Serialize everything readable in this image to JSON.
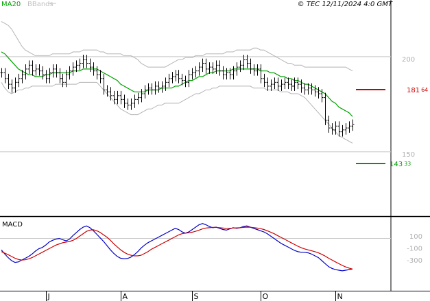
{
  "header": {
    "legend_ma": "MA20",
    "legend_bb": "BBands",
    "copyright": "© TEC 12/11/2024 4:0 GMT"
  },
  "colors": {
    "ma": "#00a000",
    "bands": "#b4b4b4",
    "bars": "#000000",
    "resistance": "#cc0000",
    "support": "#009900",
    "macd": "#0000cc",
    "signal": "#cc0000"
  },
  "macd_panel": {
    "title": "MACD"
  },
  "chart_data": [
    {
      "type": "ohlc",
      "title": "",
      "y_ticks": [
        {
          "value": 200,
          "label": "200"
        },
        {
          "value": 150,
          "label": "150"
        }
      ],
      "ylim": [
        110,
        230
      ],
      "x_axis": {
        "months": [
          {
            "label": "J",
            "index": 13
          },
          {
            "label": "A",
            "index": 35
          },
          {
            "label": "S",
            "index": 56
          },
          {
            "label": "O",
            "index": 76
          },
          {
            "label": "N",
            "index": 98
          }
        ]
      },
      "levels": [
        {
          "name": "resistance",
          "value": 181.64,
          "label_int": "181",
          "label_dec": "64"
        },
        {
          "name": "support",
          "value": 143.33,
          "label_int": "143",
          "label_dec": "33"
        }
      ],
      "reference_lines": [
        201.5,
        151.5
      ],
      "closes": [
        193,
        190,
        187,
        185,
        188,
        190,
        192,
        195,
        197,
        194,
        195,
        194,
        192,
        190,
        193,
        195,
        193,
        190,
        188,
        192,
        194,
        196,
        197,
        198,
        200,
        198,
        196,
        194,
        192,
        190,
        184,
        183,
        181,
        179,
        181,
        179,
        177,
        176,
        177,
        179,
        180,
        182,
        184,
        185,
        184,
        186,
        185,
        186,
        188,
        190,
        191,
        192,
        190,
        189,
        188,
        192,
        193,
        194,
        196,
        198,
        195,
        196,
        195,
        197,
        194,
        192,
        193,
        192,
        194,
        196,
        197,
        200,
        198,
        195,
        194,
        195,
        190,
        188,
        186,
        187,
        188,
        186,
        187,
        188,
        187,
        186,
        188,
        187,
        185,
        184,
        185,
        184,
        183,
        182,
        180,
        168,
        164,
        163,
        165,
        162,
        163,
        164,
        165,
        166
      ],
      "ma20": [
        204,
        203,
        201,
        199,
        197,
        195,
        194,
        193,
        192,
        192,
        191,
        191,
        191,
        192,
        192,
        193,
        193,
        193,
        193,
        193,
        193,
        194,
        194,
        194,
        195,
        195,
        195,
        195,
        195,
        194,
        193,
        192,
        191,
        190,
        189,
        187,
        186,
        185,
        184,
        183,
        183,
        183,
        183,
        184,
        184,
        184,
        184,
        185,
        185,
        185,
        185,
        186,
        186,
        187,
        188,
        189,
        189,
        190,
        191,
        191,
        192,
        193,
        193,
        194,
        194,
        194,
        194,
        194,
        195,
        195,
        195,
        195,
        195,
        195,
        195,
        195,
        194,
        194,
        194,
        193,
        193,
        192,
        191,
        191,
        190,
        190,
        189,
        189,
        188,
        187,
        187,
        186,
        185,
        184,
        183,
        182,
        180,
        178,
        177,
        175,
        174,
        173,
        172,
        170
      ],
      "upper_band": [
        220,
        219,
        218,
        216,
        213,
        210,
        207,
        205,
        204,
        203,
        202,
        202,
        202,
        202,
        202,
        203,
        203,
        203,
        203,
        203,
        203,
        204,
        204,
        204,
        205,
        205,
        205,
        205,
        205,
        204,
        204,
        203,
        203,
        203,
        203,
        203,
        202,
        202,
        202,
        201,
        200,
        198,
        197,
        196,
        196,
        196,
        196,
        196,
        196,
        197,
        198,
        199,
        200,
        200,
        201,
        201,
        201,
        202,
        202,
        202,
        203,
        203,
        203,
        203,
        203,
        203,
        204,
        204,
        204,
        205,
        205,
        205,
        205,
        205,
        206,
        206,
        205,
        205,
        204,
        203,
        202,
        201,
        200,
        199,
        198,
        198,
        197,
        197,
        197,
        196,
        196,
        196,
        196,
        196,
        196,
        196,
        196,
        196,
        196,
        196,
        196,
        196,
        195,
        194
      ],
      "lower_band": [
        188,
        185,
        183,
        182,
        183,
        184,
        184,
        185,
        185,
        186,
        186,
        186,
        186,
        186,
        186,
        186,
        187,
        187,
        187,
        187,
        187,
        187,
        187,
        188,
        188,
        188,
        188,
        188,
        188,
        186,
        184,
        182,
        180,
        178,
        176,
        174,
        173,
        172,
        171,
        171,
        171,
        172,
        173,
        174,
        174,
        175,
        176,
        176,
        177,
        177,
        177,
        177,
        177,
        178,
        179,
        180,
        181,
        182,
        182,
        183,
        184,
        184,
        185,
        185,
        186,
        186,
        186,
        186,
        186,
        186,
        186,
        186,
        186,
        186,
        185,
        185,
        185,
        185,
        184,
        184,
        184,
        184,
        183,
        183,
        183,
        182,
        182,
        182,
        181,
        180,
        178,
        176,
        174,
        172,
        170,
        168,
        166,
        164,
        162,
        160,
        159,
        158,
        157,
        156
      ]
    },
    {
      "type": "line",
      "title": "MACD",
      "y_ticks": [
        {
          "value": 100,
          "label": "100"
        },
        {
          "value": -100,
          "label": "-100"
        },
        {
          "value": -300,
          "label": "-300"
        }
      ],
      "ylim": [
        -520,
        380
      ],
      "zero_line": true,
      "series": [
        {
          "name": "",
          "values": [
            -120,
            -190,
            -250,
            -300,
            -330,
            -320,
            -290,
            -260,
            -230,
            -190,
            -140,
            -100,
            -80,
            -40,
            10,
            40,
            60,
            70,
            50,
            30,
            60,
            120,
            170,
            220,
            260,
            280,
            250,
            200,
            140,
            80,
            20,
            -50,
            -120,
            -180,
            -230,
            -260,
            -270,
            -265,
            -240,
            -200,
            -150,
            -90,
            -40,
            0,
            30,
            60,
            90,
            120,
            150,
            180,
            210,
            240,
            220,
            180,
            160,
            180,
            220,
            260,
            300,
            320,
            300,
            270,
            250,
            260,
            240,
            220,
            210,
            230,
            250,
            240,
            250,
            270,
            280,
            260,
            240,
            220,
            200,
            180,
            150,
            110,
            70,
            30,
            -10,
            -40,
            -70,
            -100,
            -130,
            -150,
            -160,
            -160,
            -170,
            -190,
            -220,
            -250,
            -300,
            -350,
            -400,
            -430,
            -450,
            -460,
            -470,
            -460,
            -450,
            -440
          ]
        },
        {
          "name": "",
          "values": [
            -150,
            -175,
            -200,
            -230,
            -260,
            -280,
            -290,
            -285,
            -270,
            -250,
            -220,
            -190,
            -160,
            -130,
            -100,
            -70,
            -40,
            -20,
            0,
            10,
            20,
            40,
            70,
            110,
            150,
            190,
            210,
            215,
            200,
            170,
            130,
            90,
            40,
            -20,
            -70,
            -120,
            -160,
            -190,
            -210,
            -220,
            -220,
            -210,
            -180,
            -150,
            -110,
            -80,
            -50,
            -20,
            10,
            40,
            70,
            100,
            130,
            150,
            160,
            165,
            175,
            190,
            210,
            230,
            245,
            250,
            255,
            255,
            250,
            245,
            240,
            240,
            245,
            248,
            250,
            255,
            260,
            258,
            252,
            245,
            235,
            220,
            200,
            175,
            150,
            120,
            90,
            60,
            30,
            0,
            -30,
            -60,
            -85,
            -105,
            -120,
            -135,
            -150,
            -170,
            -195,
            -225,
            -260,
            -290,
            -320,
            -350,
            -380,
            -405,
            -425,
            -440
          ]
        }
      ]
    }
  ]
}
